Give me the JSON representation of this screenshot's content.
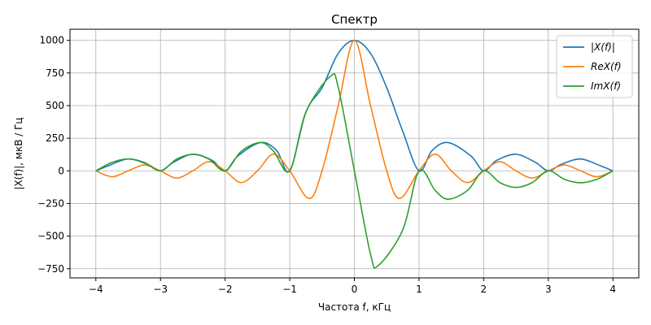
{
  "chart_data": {
    "type": "line",
    "title": "Спектр",
    "xlabel": "Частота f, кГц",
    "ylabel": "|X(f)|,  мкВ / Гц",
    "xlim": [
      -4.4,
      4.4
    ],
    "ylim": [
      -820,
      1085
    ],
    "xticks": [
      -4,
      -3,
      -2,
      -1,
      0,
      1,
      2,
      3,
      4
    ],
    "xtick_labels": [
      "−4",
      "−3",
      "−2",
      "−1",
      "0",
      "1",
      "2",
      "3",
      "4"
    ],
    "yticks": [
      -750,
      -500,
      -250,
      0,
      250,
      500,
      750,
      1000
    ],
    "ytick_labels": [
      "−750",
      "−500",
      "−250",
      "0",
      "250",
      "500",
      "750",
      "1000"
    ],
    "grid": true,
    "legend_position": "top-right",
    "x_range": [
      -4,
      4
    ],
    "series": [
      {
        "name": "|X(f)|",
        "color": "#1f77b4",
        "points": [
          [
            -4,
            0
          ],
          [
            -3.8,
            40
          ],
          [
            -3.5,
            91
          ],
          [
            -3.2,
            50
          ],
          [
            -3,
            0
          ],
          [
            -2.8,
            65
          ],
          [
            -2.5,
            127
          ],
          [
            -2.2,
            80
          ],
          [
            -2,
            0
          ],
          [
            -1.8,
            115
          ],
          [
            -1.45,
            217
          ],
          [
            -1.2,
            155
          ],
          [
            -1,
            0
          ],
          [
            -0.75,
            450
          ],
          [
            -0.5,
            637
          ],
          [
            -0.25,
            900
          ],
          [
            0,
            1000
          ],
          [
            0.25,
            900
          ],
          [
            0.5,
            637
          ],
          [
            0.75,
            300
          ],
          [
            1,
            0
          ],
          [
            1.2,
            155
          ],
          [
            1.45,
            217
          ],
          [
            1.8,
            115
          ],
          [
            2,
            0
          ],
          [
            2.2,
            80
          ],
          [
            2.5,
            127
          ],
          [
            2.8,
            65
          ],
          [
            3,
            0
          ],
          [
            3.2,
            50
          ],
          [
            3.5,
            91
          ],
          [
            3.8,
            40
          ],
          [
            4,
            0
          ]
        ]
      },
      {
        "name": "ReX(f)",
        "color": "#ff7f0e",
        "points": [
          [
            -4,
            0
          ],
          [
            -3.75,
            -45
          ],
          [
            -3.5,
            0
          ],
          [
            -3.25,
            45
          ],
          [
            -3,
            0
          ],
          [
            -2.75,
            -55
          ],
          [
            -2.5,
            0
          ],
          [
            -2.25,
            70
          ],
          [
            -2,
            0
          ],
          [
            -1.75,
            -90
          ],
          [
            -1.5,
            0
          ],
          [
            -1.25,
            128
          ],
          [
            -1,
            0
          ],
          [
            -0.7,
            -212
          ],
          [
            -0.5,
            0
          ],
          [
            -0.25,
            500
          ],
          [
            0,
            1000
          ],
          [
            0.25,
            500
          ],
          [
            0.5,
            0
          ],
          [
            0.7,
            -212
          ],
          [
            1,
            0
          ],
          [
            1.25,
            128
          ],
          [
            1.5,
            0
          ],
          [
            1.75,
            -90
          ],
          [
            2,
            0
          ],
          [
            2.25,
            70
          ],
          [
            2.5,
            0
          ],
          [
            2.75,
            -55
          ],
          [
            3,
            0
          ],
          [
            3.25,
            45
          ],
          [
            3.5,
            0
          ],
          [
            3.75,
            -45
          ],
          [
            4,
            0
          ]
        ]
      },
      {
        "name": "ImX(f)",
        "color": "#2ca02c",
        "points": [
          [
            -4,
            0
          ],
          [
            -3.75,
            65
          ],
          [
            -3.5,
            91
          ],
          [
            -3.25,
            65
          ],
          [
            -3,
            0
          ],
          [
            -2.75,
            90
          ],
          [
            -2.5,
            127
          ],
          [
            -2.25,
            90
          ],
          [
            -2,
            0
          ],
          [
            -1.75,
            150
          ],
          [
            -1.45,
            217
          ],
          [
            -1.25,
            150
          ],
          [
            -1,
            0
          ],
          [
            -0.75,
            450
          ],
          [
            -0.37,
            725
          ],
          [
            -0.25,
            640
          ],
          [
            0,
            0
          ],
          [
            0.25,
            -640
          ],
          [
            0.37,
            -725
          ],
          [
            0.75,
            -450
          ],
          [
            1,
            0
          ],
          [
            1.25,
            -150
          ],
          [
            1.45,
            -217
          ],
          [
            1.75,
            -150
          ],
          [
            2,
            0
          ],
          [
            2.25,
            -90
          ],
          [
            2.5,
            -127
          ],
          [
            2.75,
            -90
          ],
          [
            3,
            0
          ],
          [
            3.25,
            -65
          ],
          [
            3.5,
            -91
          ],
          [
            3.75,
            -65
          ],
          [
            4,
            0
          ]
        ]
      }
    ]
  }
}
